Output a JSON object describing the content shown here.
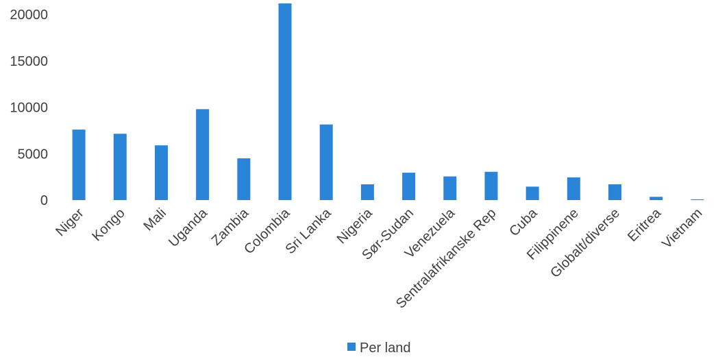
{
  "chart_data": {
    "type": "bar",
    "title": "",
    "xlabel": "",
    "ylabel": "",
    "categories": [
      "Niger",
      "Kongo",
      "Mali",
      "Uganda",
      "Zambia",
      "Colombia",
      "Sri Lanka",
      "Nigeria",
      "Sør-Sudan",
      "Venezuela",
      "Sentralafrikanske Rep",
      "Cuba",
      "Filippinene",
      "Globalt/diverse",
      "Eritrea",
      "Vietnam"
    ],
    "series": [
      {
        "name": "Per land",
        "color": "#2a84d8",
        "values": [
          7600,
          7150,
          5900,
          9800,
          4500,
          21200,
          8150,
          1700,
          2950,
          2550,
          3050,
          1450,
          2450,
          1700,
          350,
          80
        ]
      }
    ],
    "ylim": [
      0,
      21200
    ],
    "yticks": [
      0,
      5000,
      10000,
      15000,
      20000
    ],
    "grid": false,
    "legend": {
      "position": "bottom",
      "entries": [
        "Per land"
      ]
    }
  }
}
